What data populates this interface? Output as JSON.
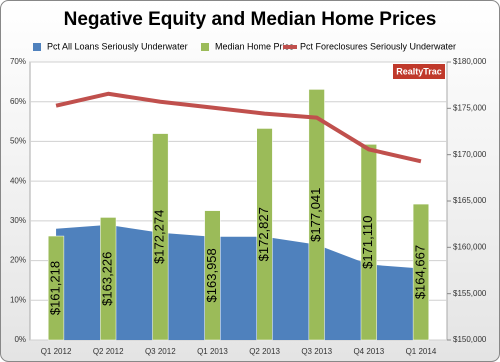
{
  "chart_data": {
    "type": "combo",
    "title": "Negative Equity and Median Home Prices",
    "logo": "RealtyTrac",
    "categories": [
      "Q1 2012",
      "Q2 2012",
      "Q3 2012",
      "Q1 2013",
      "Q2 2013",
      "Q3 2013",
      "Q4 2013",
      "Q1 2014"
    ],
    "series": [
      {
        "name": "Pct All Loans Seriously Underwater",
        "type": "area",
        "color": "#4f81bd",
        "values": [
          28,
          29,
          27,
          26,
          26,
          24,
          19,
          18
        ]
      },
      {
        "name": "Median Home Price",
        "type": "bar",
        "axis": "y2",
        "color": "#9bbb59",
        "values": [
          161218,
          163226,
          172274,
          163958,
          172827,
          177041,
          171110,
          164667
        ],
        "value_labels": [
          "$161,218",
          "$163,226",
          "$172,274",
          "$163,958",
          "$172,827",
          "$177,041",
          "$171,110",
          "$164,667"
        ]
      },
      {
        "name": "Pct Foreclosures Seriously Underwater",
        "type": "line",
        "color": "#c0504d",
        "values": [
          59,
          62,
          60,
          58.5,
          57,
          56,
          48,
          45
        ]
      }
    ],
    "ylim": [
      0,
      70
    ],
    "yticks": [
      {
        "value": 0,
        "label": "0%"
      },
      {
        "value": 10,
        "label": "10%"
      },
      {
        "value": 20,
        "label": "20%"
      },
      {
        "value": 30,
        "label": "30%"
      },
      {
        "value": 40,
        "label": "40%"
      },
      {
        "value": 50,
        "label": "50%"
      },
      {
        "value": 60,
        "label": "60%"
      },
      {
        "value": 70,
        "label": "70%"
      }
    ],
    "y2lim": [
      150000,
      180000
    ],
    "y2ticks": [
      {
        "value": 150000,
        "label": "$150,000"
      },
      {
        "value": 155000,
        "label": "$155,000"
      },
      {
        "value": 160000,
        "label": "$160,000"
      },
      {
        "value": 165000,
        "label": "$165,000"
      },
      {
        "value": 170000,
        "label": "$170,000"
      },
      {
        "value": 175000,
        "label": "$175,000"
      },
      {
        "value": 180000,
        "label": "$180,000"
      }
    ],
    "grid": true
  }
}
